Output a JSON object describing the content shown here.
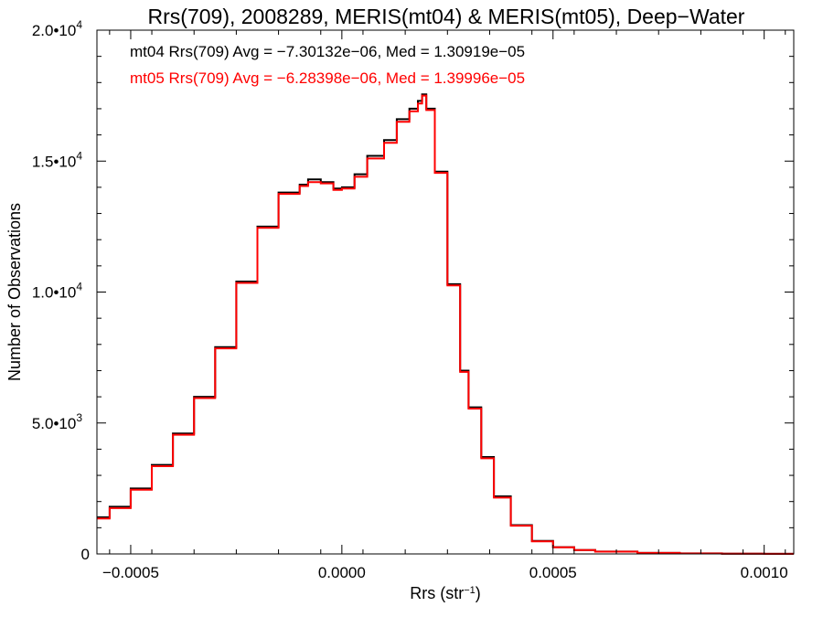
{
  "chart_data": {
    "type": "line",
    "title": "Rrs(709), 2008289, MERIS(mt04) & MERIS(mt05), Deep−Water",
    "xlabel_base": "Rrs (str",
    "xlabel_sup": "−1",
    "xlabel_end": ")",
    "ylabel": "Number of Observations",
    "xlim": [
      -0.00058,
      0.00107
    ],
    "ylim": [
      0,
      20000
    ],
    "x_ticks": [
      {
        "value": -0.0005,
        "label": "−0.0005"
      },
      {
        "value": 0.0,
        "label": "0.0000"
      },
      {
        "value": 0.0005,
        "label": "0.0005"
      },
      {
        "value": 0.001,
        "label": "0.0010"
      }
    ],
    "y_ticks": [
      {
        "value": 0,
        "base": "0",
        "exp": ""
      },
      {
        "value": 5000,
        "base": "5.0•10",
        "exp": "3"
      },
      {
        "value": 10000,
        "base": "1.0•10",
        "exp": "4"
      },
      {
        "value": 15000,
        "base": "1.5•10",
        "exp": "4"
      },
      {
        "value": 20000,
        "base": "2.0•10",
        "exp": "4"
      }
    ],
    "annotations": [
      {
        "text": "mt04 Rrs(709) Avg = −7.30132e−06, Med = 1.30919e−05",
        "color": "#000000"
      },
      {
        "text": "mt05 Rrs(709) Avg = −6.28398e−06, Med = 1.39996e−05",
        "color": "#ff0000"
      }
    ],
    "series": [
      {
        "color": "#000000",
        "step": true,
        "x": [
          -0.00058,
          -0.00055,
          -0.0005,
          -0.00045,
          -0.0004,
          -0.00035,
          -0.0003,
          -0.00025,
          -0.0002,
          -0.00015,
          -0.0001,
          -8e-05,
          -5e-05,
          -2e-05,
          0.0,
          3e-05,
          6e-05,
          0.0001,
          0.00013,
          0.00016,
          0.00018,
          0.00019,
          0.0002,
          0.00022,
          0.00025,
          0.00028,
          0.0003,
          0.00033,
          0.00036,
          0.0004,
          0.00045,
          0.0005,
          0.00055,
          0.0006,
          0.0007,
          0.0008,
          0.0009,
          0.001,
          0.00107
        ],
        "y": [
          1400,
          1800,
          2500,
          3400,
          4600,
          6000,
          7900,
          10400,
          12500,
          13800,
          14100,
          14300,
          14200,
          13950,
          14000,
          14500,
          15200,
          15800,
          16600,
          17000,
          17300,
          17550,
          17000,
          14600,
          10300,
          7000,
          5600,
          3700,
          2200,
          1100,
          500,
          260,
          150,
          90,
          40,
          20,
          10,
          5,
          2
        ]
      },
      {
        "color": "#ff0000",
        "step": true,
        "x": [
          -0.00058,
          -0.00055,
          -0.0005,
          -0.00045,
          -0.0004,
          -0.00035,
          -0.0003,
          -0.00025,
          -0.0002,
          -0.00015,
          -0.0001,
          -8e-05,
          -5e-05,
          -2e-05,
          0.0,
          3e-05,
          6e-05,
          0.0001,
          0.00013,
          0.00016,
          0.00018,
          0.00019,
          0.0002,
          0.00022,
          0.00025,
          0.00028,
          0.0003,
          0.00033,
          0.00036,
          0.0004,
          0.00045,
          0.0005,
          0.00055,
          0.0006,
          0.0007,
          0.0008,
          0.0009,
          0.001,
          0.00107
        ],
        "y": [
          1350,
          1750,
          2450,
          3350,
          4550,
          5950,
          7850,
          10350,
          12450,
          13750,
          14050,
          14200,
          14150,
          13900,
          13950,
          14400,
          15100,
          15700,
          16500,
          16900,
          17200,
          17500,
          16950,
          14550,
          10250,
          6950,
          5550,
          3650,
          2150,
          1080,
          480,
          250,
          145,
          88,
          38,
          19,
          9,
          4,
          2
        ]
      }
    ]
  }
}
